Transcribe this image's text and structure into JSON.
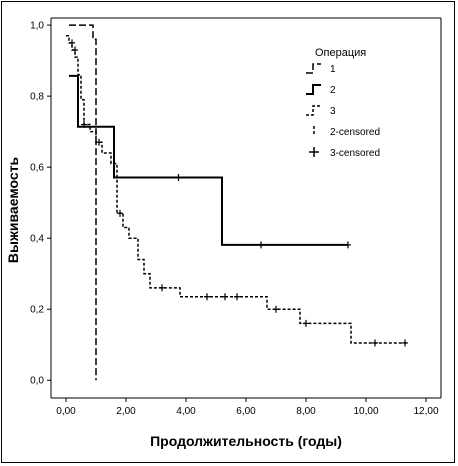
{
  "chart_data": {
    "type": "line",
    "step": true,
    "xlabel": "Продолжительность (годы)",
    "ylabel": "Выживаемость",
    "xlim": [
      -0.5,
      12.5
    ],
    "ylim": [
      -0.05,
      1.02
    ],
    "x_ticks": [
      0,
      2,
      4,
      6,
      8,
      10,
      12
    ],
    "x_tick_labels": [
      "0,00",
      "2,00",
      "4,00",
      "6,00",
      "8,00",
      "10,00",
      "12,00"
    ],
    "y_ticks": [
      0,
      0.2,
      0.4,
      0.6,
      0.8,
      1.0
    ],
    "y_tick_labels": [
      "0,0",
      "0,2",
      "0,4",
      "0,6",
      "0,8",
      "1,0"
    ],
    "grid": false,
    "legend_position": "top-right",
    "legend": {
      "title": "Операция",
      "entries": [
        "1",
        "2",
        "3",
        "2-censored",
        "3-censored"
      ]
    },
    "series": [
      {
        "name": "1",
        "style": "dashed-long",
        "points": [
          [
            0.1,
            1.0
          ],
          [
            0.9,
            1.0
          ],
          [
            0.9,
            0.96
          ],
          [
            1.0,
            0.96
          ],
          [
            1.0,
            0.0
          ]
        ]
      },
      {
        "name": "2",
        "style": "solid",
        "points": [
          [
            0.1,
            0.857
          ],
          [
            0.4,
            0.857
          ],
          [
            0.4,
            0.714
          ],
          [
            1.6,
            0.714
          ],
          [
            1.6,
            0.571
          ],
          [
            5.2,
            0.571
          ],
          [
            5.2,
            0.381
          ],
          [
            9.4,
            0.381
          ]
        ]
      },
      {
        "name": "3",
        "style": "dotted",
        "points": [
          [
            0.0,
            0.97
          ],
          [
            0.1,
            0.97
          ],
          [
            0.1,
            0.95
          ],
          [
            0.2,
            0.95
          ],
          [
            0.2,
            0.93
          ],
          [
            0.3,
            0.93
          ],
          [
            0.3,
            0.91
          ],
          [
            0.4,
            0.91
          ],
          [
            0.4,
            0.86
          ],
          [
            0.5,
            0.86
          ],
          [
            0.5,
            0.79
          ],
          [
            0.6,
            0.79
          ],
          [
            0.6,
            0.72
          ],
          [
            0.8,
            0.72
          ],
          [
            0.8,
            0.7
          ],
          [
            1.0,
            0.7
          ],
          [
            1.0,
            0.67
          ],
          [
            1.2,
            0.67
          ],
          [
            1.2,
            0.64
          ],
          [
            1.5,
            0.64
          ],
          [
            1.5,
            0.61
          ],
          [
            1.7,
            0.61
          ],
          [
            1.7,
            0.47
          ],
          [
            1.9,
            0.47
          ],
          [
            1.9,
            0.43
          ],
          [
            2.1,
            0.43
          ],
          [
            2.1,
            0.4
          ],
          [
            2.4,
            0.4
          ],
          [
            2.4,
            0.34
          ],
          [
            2.6,
            0.34
          ],
          [
            2.6,
            0.3
          ],
          [
            2.8,
            0.3
          ],
          [
            2.8,
            0.26
          ],
          [
            3.8,
            0.26
          ],
          [
            3.8,
            0.235
          ],
          [
            6.7,
            0.235
          ],
          [
            6.7,
            0.2
          ],
          [
            7.8,
            0.2
          ],
          [
            7.8,
            0.16
          ],
          [
            9.5,
            0.16
          ],
          [
            9.5,
            0.105
          ],
          [
            11.4,
            0.105
          ]
        ]
      }
    ],
    "censored": [
      {
        "name": "2-censored",
        "points": [
          [
            3.75,
            0.571
          ],
          [
            6.5,
            0.381
          ],
          [
            9.4,
            0.381
          ]
        ]
      },
      {
        "name": "3-censored",
        "points": [
          [
            0.2,
            0.95
          ],
          [
            0.3,
            0.93
          ],
          [
            0.6,
            0.72
          ],
          [
            1.1,
            0.67
          ],
          [
            1.8,
            0.47
          ],
          [
            3.2,
            0.26
          ],
          [
            4.7,
            0.235
          ],
          [
            5.3,
            0.235
          ],
          [
            5.7,
            0.235
          ],
          [
            7.0,
            0.2
          ],
          [
            8.0,
            0.16
          ],
          [
            10.3,
            0.105
          ],
          [
            11.3,
            0.105
          ]
        ]
      }
    ]
  }
}
